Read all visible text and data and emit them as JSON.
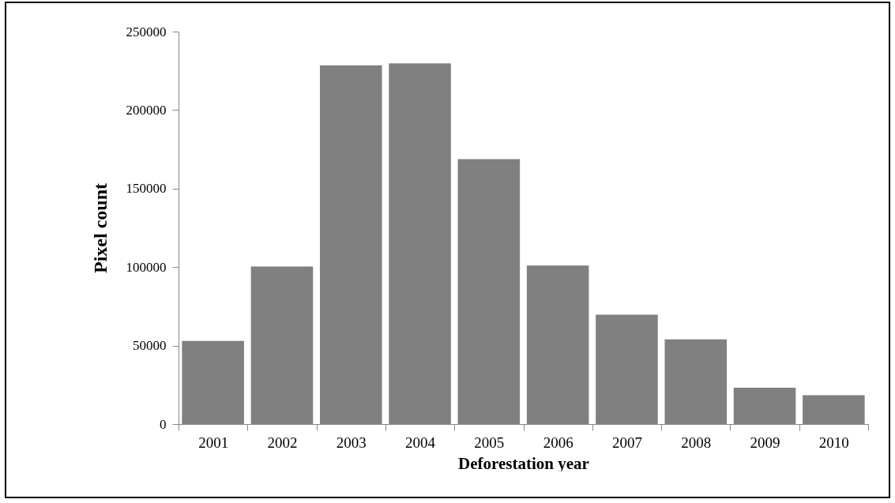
{
  "chart_data": {
    "type": "bar",
    "xlabel": "Deforestation year",
    "ylabel": "Pixel count",
    "categories": [
      "2001",
      "2002",
      "2003",
      "2004",
      "2005",
      "2006",
      "2007",
      "2008",
      "2009",
      "2010"
    ],
    "values": [
      53000,
      100400,
      228500,
      229700,
      168800,
      101000,
      69700,
      54000,
      23100,
      18300
    ],
    "color": "#808080",
    "ylim": [
      0,
      250000
    ],
    "yticks": [
      0,
      50000,
      100000,
      150000,
      200000,
      250000
    ],
    "grid": false
  }
}
